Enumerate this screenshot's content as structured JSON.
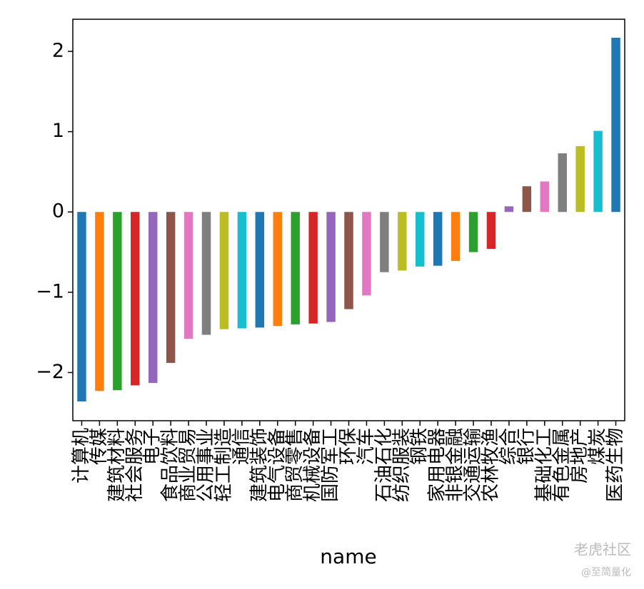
{
  "chart_data": {
    "type": "bar",
    "xlabel": "name",
    "categories": [
      "计算机",
      "传媒",
      "建筑材料",
      "社会服务",
      "电子",
      "食品饮料",
      "商业贸易",
      "公用事业",
      "轻工制造",
      "通信",
      "建筑装饰",
      "电气设备",
      "商贸零售",
      "机械设备",
      "国防军工",
      "环保",
      "汽车",
      "石油石化",
      "纺织服装",
      "钢铁",
      "家用电器",
      "非银金融",
      "交通运输",
      "农林牧渔",
      "综合",
      "银行",
      "基础化工",
      "有色金属",
      "房地产",
      "煤炭",
      "医药生物"
    ],
    "values": [
      -2.36,
      -2.23,
      -2.22,
      -2.16,
      -2.13,
      -1.88,
      -1.58,
      -1.53,
      -1.46,
      -1.45,
      -1.44,
      -1.42,
      -1.4,
      -1.39,
      -1.37,
      -1.21,
      -1.04,
      -0.75,
      -0.73,
      -0.68,
      -0.67,
      -0.61,
      -0.5,
      -0.46,
      0.07,
      0.32,
      0.38,
      0.73,
      0.82,
      1.01,
      2.17
    ],
    "colors": [
      "#1f77b4",
      "#ff7f0e",
      "#2ca02c",
      "#d62728",
      "#9467bd",
      "#8c564b",
      "#e377c2",
      "#7f7f7f",
      "#bcbd22",
      "#17becf"
    ],
    "ylim": [
      -2.6,
      2.4
    ],
    "yticks": [
      {
        "value": -2,
        "label": "−2"
      },
      {
        "value": -1,
        "label": "−1"
      },
      0,
      1,
      2
    ],
    "watermark": [
      "老虎社区",
      "@至简量化"
    ]
  }
}
